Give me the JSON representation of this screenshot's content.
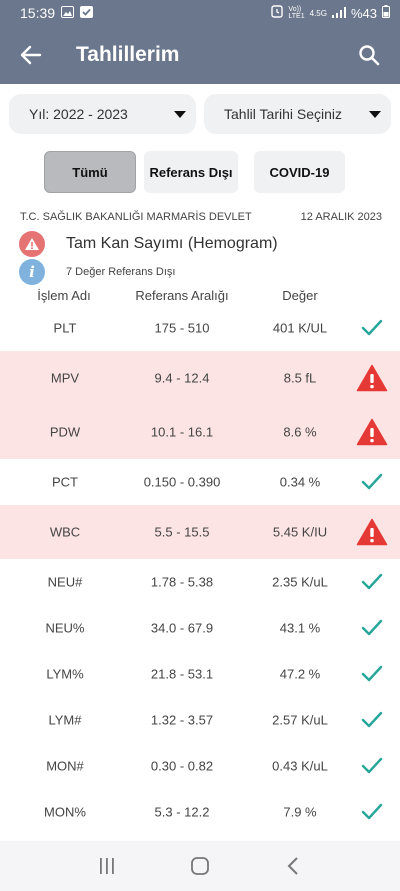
{
  "status_bar": {
    "time": "15:39",
    "network_top": "Vo))",
    "network_bottom": "LTE1",
    "network_type": "4.5G",
    "battery": "%43"
  },
  "app_bar": {
    "title": "Tahlillerim"
  },
  "filters": {
    "year_label": "Yıl: 2022 - 2023",
    "date_label": "Tahlil Tarihi Seçiniz"
  },
  "chips": [
    {
      "label": "Tümü",
      "active": true
    },
    {
      "label": "Referans Dışı",
      "active": false
    },
    {
      "label": "COVID-19",
      "active": false
    }
  ],
  "result": {
    "lab": "T.C. SAĞLIK BAKANLIĞI MARMARİS DEVLET",
    "date": "12 ARALIK 2023",
    "test_name": "Tam Kan Sayımı (Hemogram)",
    "summary": "7 Değer Referans Dışı"
  },
  "table": {
    "headers": {
      "name": "İşlem Adı",
      "range": "Referans Aralığı",
      "value": "Değer"
    },
    "rows": [
      {
        "name": "PLT",
        "range": "175 - 510",
        "value": "401 K/UL",
        "status": "ok"
      },
      {
        "name": "MPV",
        "range": "9.4 - 12.4",
        "value": "8.5 fL",
        "status": "out"
      },
      {
        "name": "PDW",
        "range": "10.1 - 16.1",
        "value": "8.6 %",
        "status": "out"
      },
      {
        "name": "PCT",
        "range": "0.150 - 0.390",
        "value": "0.34 %",
        "status": "ok"
      },
      {
        "name": "WBC",
        "range": "5.5 - 15.5",
        "value": "5.45 K/IU",
        "status": "out"
      },
      {
        "name": "NEU#",
        "range": "1.78 - 5.38",
        "value": "2.35 K/uL",
        "status": "ok"
      },
      {
        "name": "NEU%",
        "range": "34.0 - 67.9",
        "value": "43.1 %",
        "status": "ok"
      },
      {
        "name": "LYM%",
        "range": "21.8 - 53.1",
        "value": "47.2 %",
        "status": "ok"
      },
      {
        "name": "LYM#",
        "range": "1.32 - 3.57",
        "value": "2.57 K/uL",
        "status": "ok"
      },
      {
        "name": "MON#",
        "range": "0.30 - 0.82",
        "value": "0.43 K/uL",
        "status": "ok"
      },
      {
        "name": "MON%",
        "range": "5.3 - 12.2",
        "value": "7.9 %",
        "status": "ok"
      }
    ]
  },
  "colors": {
    "app_bar": "#6b778c",
    "out_of_range_row": "#fce4e4",
    "warning_icon": "#e53935",
    "check_icon": "#26a69a",
    "info_icon": "#7fb3de"
  },
  "icons": {
    "back": "arrow-left-icon",
    "search": "search-icon",
    "ok": "check-icon",
    "out": "warning-triangle-icon"
  }
}
